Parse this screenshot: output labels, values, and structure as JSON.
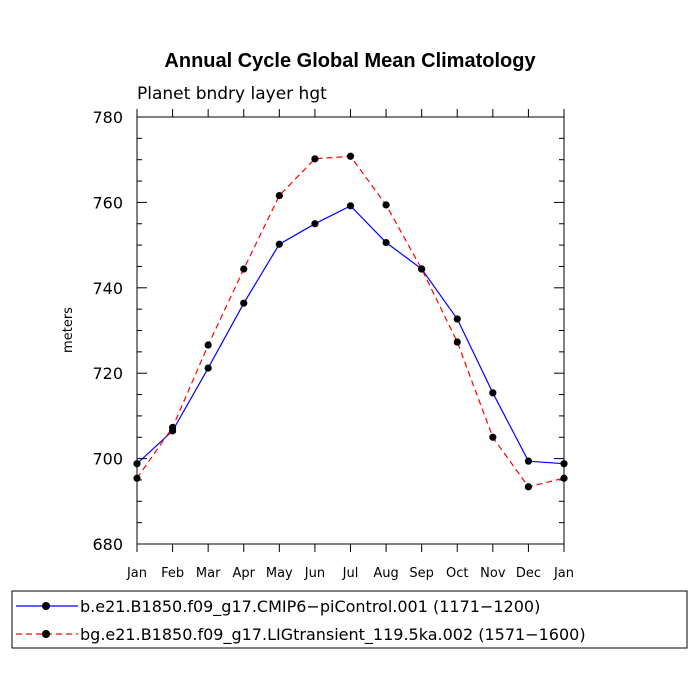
{
  "chart_data": {
    "type": "line",
    "title": "Annual Cycle Global Mean Climatology",
    "subtitle": "Planet bndry layer hgt",
    "xlabel": "",
    "ylabel": "meters",
    "categories": [
      "Jan",
      "Feb",
      "Mar",
      "Apr",
      "May",
      "Jun",
      "Jul",
      "Aug",
      "Sep",
      "Oct",
      "Nov",
      "Dec",
      "Jan"
    ],
    "ylim": [
      680,
      780
    ],
    "yticks": [
      "680",
      "700",
      "720",
      "740",
      "760",
      "780"
    ],
    "series": [
      {
        "name": "b.e21.B1850.f09_g17.CMIP6−piControl.001 (1171−1200)",
        "color": "#0000ff",
        "dash": "solid",
        "values": [
          698.8,
          706.5,
          721.2,
          736.4,
          750.2,
          755.0,
          759.2,
          750.6,
          744.4,
          732.7,
          715.4,
          699.4,
          698.8
        ]
      },
      {
        "name": "bg.e21.B1850.f09_g17.LIGtransient_119.5ka.002 (1571−1600)",
        "color": "#ff0000",
        "dash": "dashed",
        "values": [
          695.4,
          707.3,
          726.6,
          744.4,
          761.6,
          770.2,
          770.8,
          759.4,
          744.4,
          727.3,
          705.0,
          693.4,
          695.4
        ]
      }
    ],
    "legend_position": "bottom"
  }
}
